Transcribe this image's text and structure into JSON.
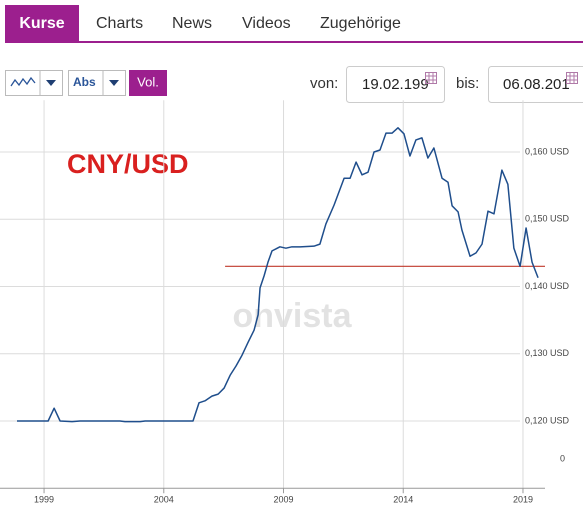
{
  "tabs": [
    "Kurse",
    "Charts",
    "News",
    "Videos",
    "Zugehörige"
  ],
  "controls": {
    "abs_label": "Abs",
    "vol_label": "Vol.",
    "from_label": "von:",
    "from_date": "19.02.199",
    "to_label": "bis:",
    "to_date": "06.08.201"
  },
  "watermark": "onvista",
  "volume_axis_label": "0",
  "chart_data": {
    "type": "line",
    "title": "CNY/USD",
    "color": "#1f4e8c",
    "x": [
      1997.87,
      1999.17,
      1999.42,
      1999.67,
      2000.17,
      2000.5,
      2002.17,
      2002.38,
      2003.01,
      2003.22,
      2005.22,
      2005.47,
      2005.72,
      2006.01,
      2006.27,
      2006.52,
      2006.77,
      2007.02,
      2007.27,
      2007.52,
      2007.77,
      2007.94,
      2008.02,
      2008.19,
      2008.35,
      2008.52,
      2008.69,
      2008.85,
      2009.1,
      2009.35,
      2009.69,
      2010.27,
      2010.52,
      2010.77,
      2011.11,
      2011.53,
      2011.78,
      2012.03,
      2012.28,
      2012.53,
      2012.78,
      2013.03,
      2013.28,
      2013.53,
      2013.78,
      2014.03,
      2014.28,
      2014.53,
      2014.78,
      2015.03,
      2015.28,
      2015.62,
      2015.87,
      2016.04,
      2016.29,
      2016.45,
      2016.79,
      2017.04,
      2017.29,
      2017.54,
      2017.79,
      2018.12,
      2018.37,
      2018.62,
      2018.88,
      2019.13,
      2019.38,
      2019.63
    ],
    "values": [
      0.12,
      0.12,
      0.1219,
      0.12,
      0.1199,
      0.12,
      0.12,
      0.1199,
      0.1199,
      0.12,
      0.12,
      0.1227,
      0.123,
      0.1237,
      0.124,
      0.1249,
      0.1268,
      0.1282,
      0.1298,
      0.1317,
      0.1335,
      0.1358,
      0.1398,
      0.1416,
      0.1436,
      0.1453,
      0.1456,
      0.1459,
      0.1457,
      0.1459,
      0.1459,
      0.146,
      0.1463,
      0.1493,
      0.1521,
      0.1561,
      0.1561,
      0.1585,
      0.1566,
      0.157,
      0.16,
      0.1603,
      0.1628,
      0.1628,
      0.1636,
      0.1627,
      0.1594,
      0.1618,
      0.1621,
      0.1591,
      0.1606,
      0.1561,
      0.1555,
      0.152,
      0.1511,
      0.1484,
      0.1445,
      0.145,
      0.1463,
      0.1512,
      0.1508,
      0.1573,
      0.1552,
      0.1457,
      0.143,
      0.1487,
      0.1436,
      0.1413
    ],
    "xlim": [
      1997.87,
      2019.92
    ],
    "xticks": [
      1999,
      2004,
      2009,
      2014,
      2019
    ],
    "ylim": [
      0.11,
      0.168
    ],
    "yticks": [
      {
        "value": 0.16,
        "label": "0,160 USD"
      },
      {
        "value": 0.15,
        "label": "0,150 USD"
      },
      {
        "value": 0.14,
        "label": "0,140 USD"
      },
      {
        "value": 0.13,
        "label": "0,130 USD"
      },
      {
        "value": 0.12,
        "label": "0,120 USD"
      }
    ],
    "grid": true,
    "reference_line": {
      "value": 0.143,
      "x_start": 2006.56,
      "color": "#c0392b"
    }
  }
}
